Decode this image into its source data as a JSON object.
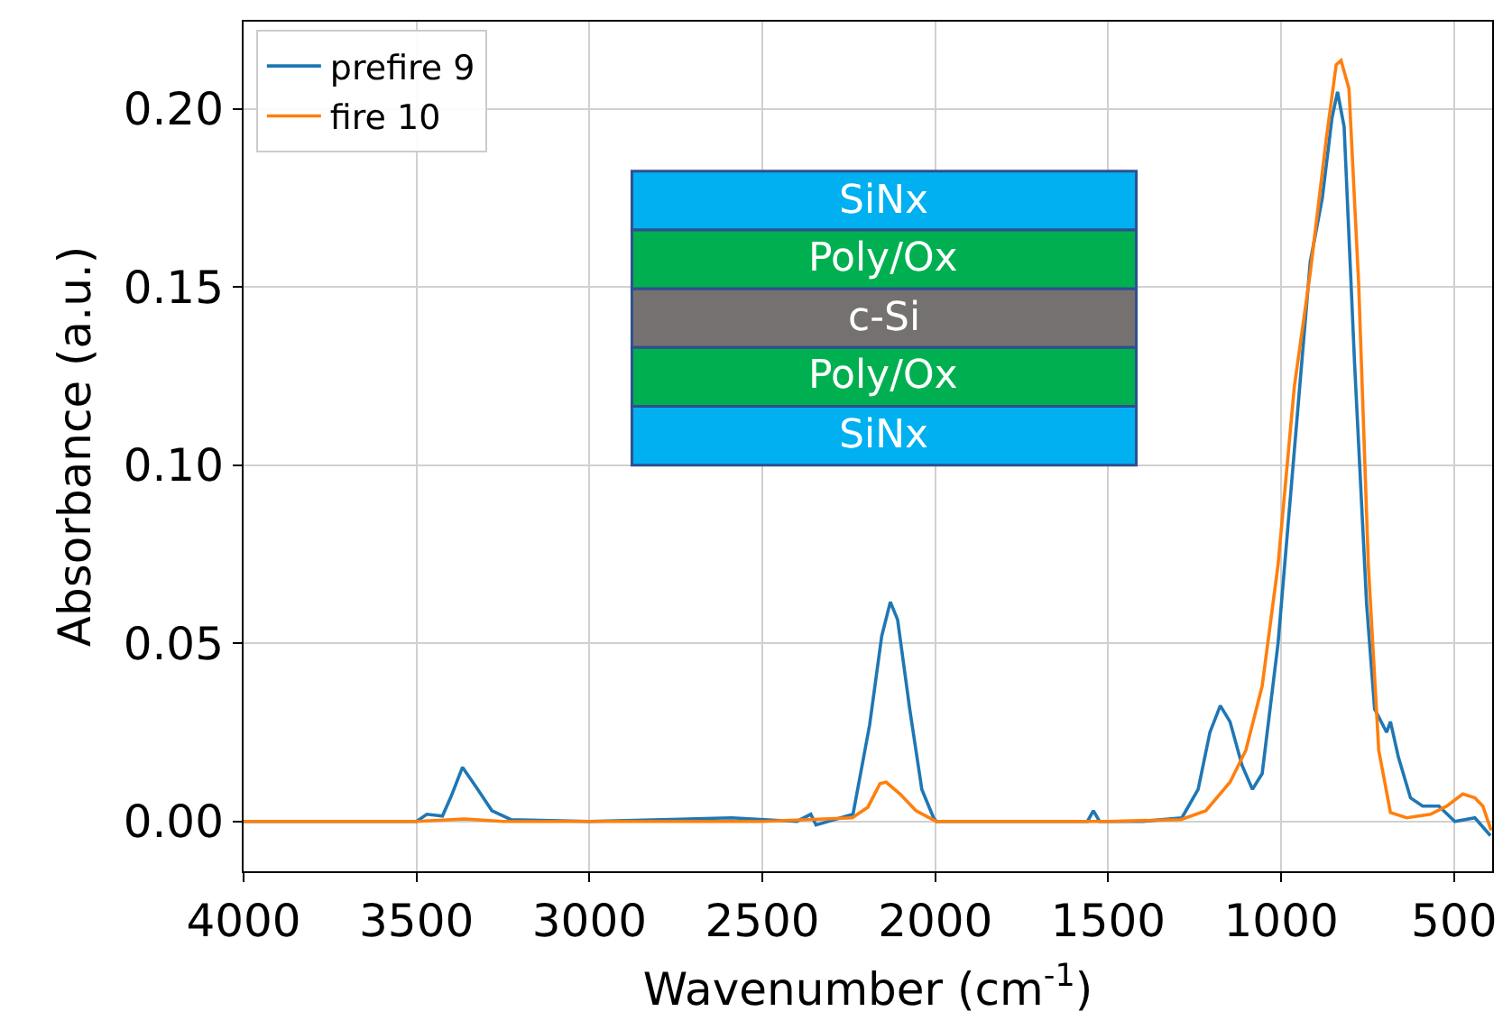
{
  "chart_data": {
    "type": "line",
    "xlabel": "Wavenumber (cm$^{-1}$)",
    "ylabel": "Absorbance (a.u.)",
    "xlim": [
      4000,
      390
    ],
    "ylim": [
      -0.014,
      0.2245
    ],
    "xticks": [
      4000,
      3500,
      3000,
      2500,
      2000,
      1500,
      1000,
      500
    ],
    "yticks": [
      {
        "value": 0,
        "label": "0.00"
      },
      {
        "value": 0.05,
        "label": "0.05"
      },
      {
        "value": 0.1,
        "label": "0.10"
      },
      {
        "value": 0.15,
        "label": "0.15"
      },
      {
        "value": 0.2,
        "label": "0.20"
      }
    ],
    "grid": true,
    "legend": "top left",
    "line_style": "solid",
    "marker": "none",
    "annotations": [
      "SiNx",
      "Poly/Ox",
      "c-Si",
      "Poly/Ox",
      "SiNx"
    ],
    "series": [
      {
        "name": "prefire 9",
        "color": "#1f77b4",
        "x": [
          4000,
          3700,
          3500,
          3470,
          3425,
          3400,
          3367,
          3330,
          3282,
          3227,
          3000,
          2589,
          2400,
          2360,
          2345,
          2238,
          2190,
          2155,
          2130,
          2109,
          2074,
          2039,
          2005,
          1997,
          1700,
          1560,
          1543,
          1525,
          1400,
          1287,
          1240,
          1206,
          1176,
          1148,
          1113,
          1083,
          1055,
          1009,
          962,
          916,
          881,
          853,
          837,
          818,
          788,
          753,
          730,
          695,
          684,
          661,
          626,
          591,
          544,
          498,
          440,
          395
        ],
        "values": [
          0,
          0,
          0,
          0.002,
          0.0015,
          0.007,
          0.0152,
          0.01,
          0.003,
          0.0005,
          0,
          0.001,
          0,
          0.002,
          -0.001,
          0.002,
          0.027,
          0.052,
          0.0616,
          0.0566,
          0.0316,
          0.009,
          0.001,
          0,
          0,
          0,
          0.003,
          0,
          0,
          0.001,
          0.009,
          0.025,
          0.0325,
          0.028,
          0.0157,
          0.009,
          0.0134,
          0.05,
          0.104,
          0.157,
          0.175,
          0.1975,
          0.2048,
          0.195,
          0.129,
          0.061,
          0.0316,
          0.025,
          0.028,
          0.018,
          0.0066,
          0.0043,
          0.0043,
          0,
          0.001,
          -0.004
        ]
      },
      {
        "name": "fire 10",
        "color": "#ff7f0e",
        "x": [
          4000,
          3500,
          3360,
          3250,
          2500,
          2240,
          2195,
          2160,
          2142,
          2102,
          2056,
          1998,
          1500,
          1290,
          1218,
          1148,
          1102,
          1055,
          1009,
          962,
          916,
          869,
          841,
          827,
          804,
          776,
          748,
          718,
          684,
          637,
          568,
          521,
          475,
          440,
          417,
          393
        ],
        "values": [
          0,
          0,
          0.0007,
          0,
          0,
          0.001,
          0.004,
          0.0106,
          0.011,
          0.0077,
          0.003,
          0,
          0,
          0.0005,
          0.003,
          0.011,
          0.02,
          0.038,
          0.072,
          0.122,
          0.154,
          0.192,
          0.2124,
          0.2136,
          0.2057,
          0.151,
          0.072,
          0.02,
          0.0025,
          0.001,
          0.002,
          0.0043,
          0.0077,
          0.0066,
          0.0043,
          -0.0025
        ]
      }
    ]
  }
}
